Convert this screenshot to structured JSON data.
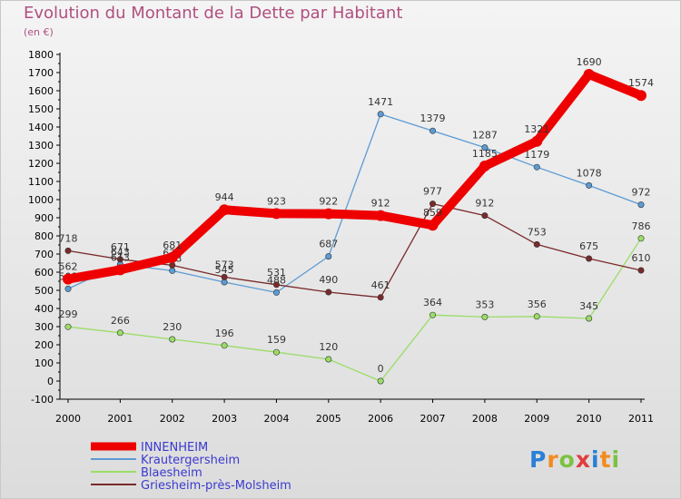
{
  "title": "Evolution du Montant de la Dette par Habitant",
  "subtitle": "(en €)",
  "logo": {
    "text": "Proxiti",
    "colors": [
      "#2a7fd8",
      "#f28c1f",
      "#7cc242",
      "#e23c3c"
    ]
  },
  "chart_data": {
    "type": "line",
    "x": [
      "2000",
      "2001",
      "2002",
      "2003",
      "2004",
      "2005",
      "2006",
      "2007",
      "2008",
      "2009",
      "2010",
      "2011"
    ],
    "ylim": [
      -100,
      1800
    ],
    "yticks": [
      -100,
      0,
      100,
      200,
      300,
      400,
      500,
      600,
      700,
      800,
      900,
      1000,
      1100,
      1200,
      1300,
      1400,
      1500,
      1600,
      1700,
      1800
    ],
    "grid": false,
    "legend_position": "bottom-left",
    "series": [
      {
        "name": "INNENHEIM",
        "color": "#ee0000",
        "values": [
          562,
          613,
          681,
          944,
          923,
          922,
          912,
          859,
          1185,
          1321,
          1690,
          1574
        ]
      },
      {
        "name": "Krautergersheim",
        "color": "#5b9bd5",
        "values": [
          508,
          643,
          608,
          545,
          488,
          687,
          1471,
          1379,
          1287,
          1179,
          1078,
          972
        ]
      },
      {
        "name": "Blaesheim",
        "color": "#99dd66",
        "values": [
          299,
          266,
          230,
          196,
          159,
          120,
          0,
          364,
          353,
          356,
          345,
          786
        ]
      },
      {
        "name": "Griesheim-près-Molsheim",
        "color": "#7a2a2a",
        "values": [
          718,
          671,
          638,
          573,
          531,
          490,
          461,
          977,
          912,
          753,
          675,
          610
        ]
      }
    ]
  }
}
